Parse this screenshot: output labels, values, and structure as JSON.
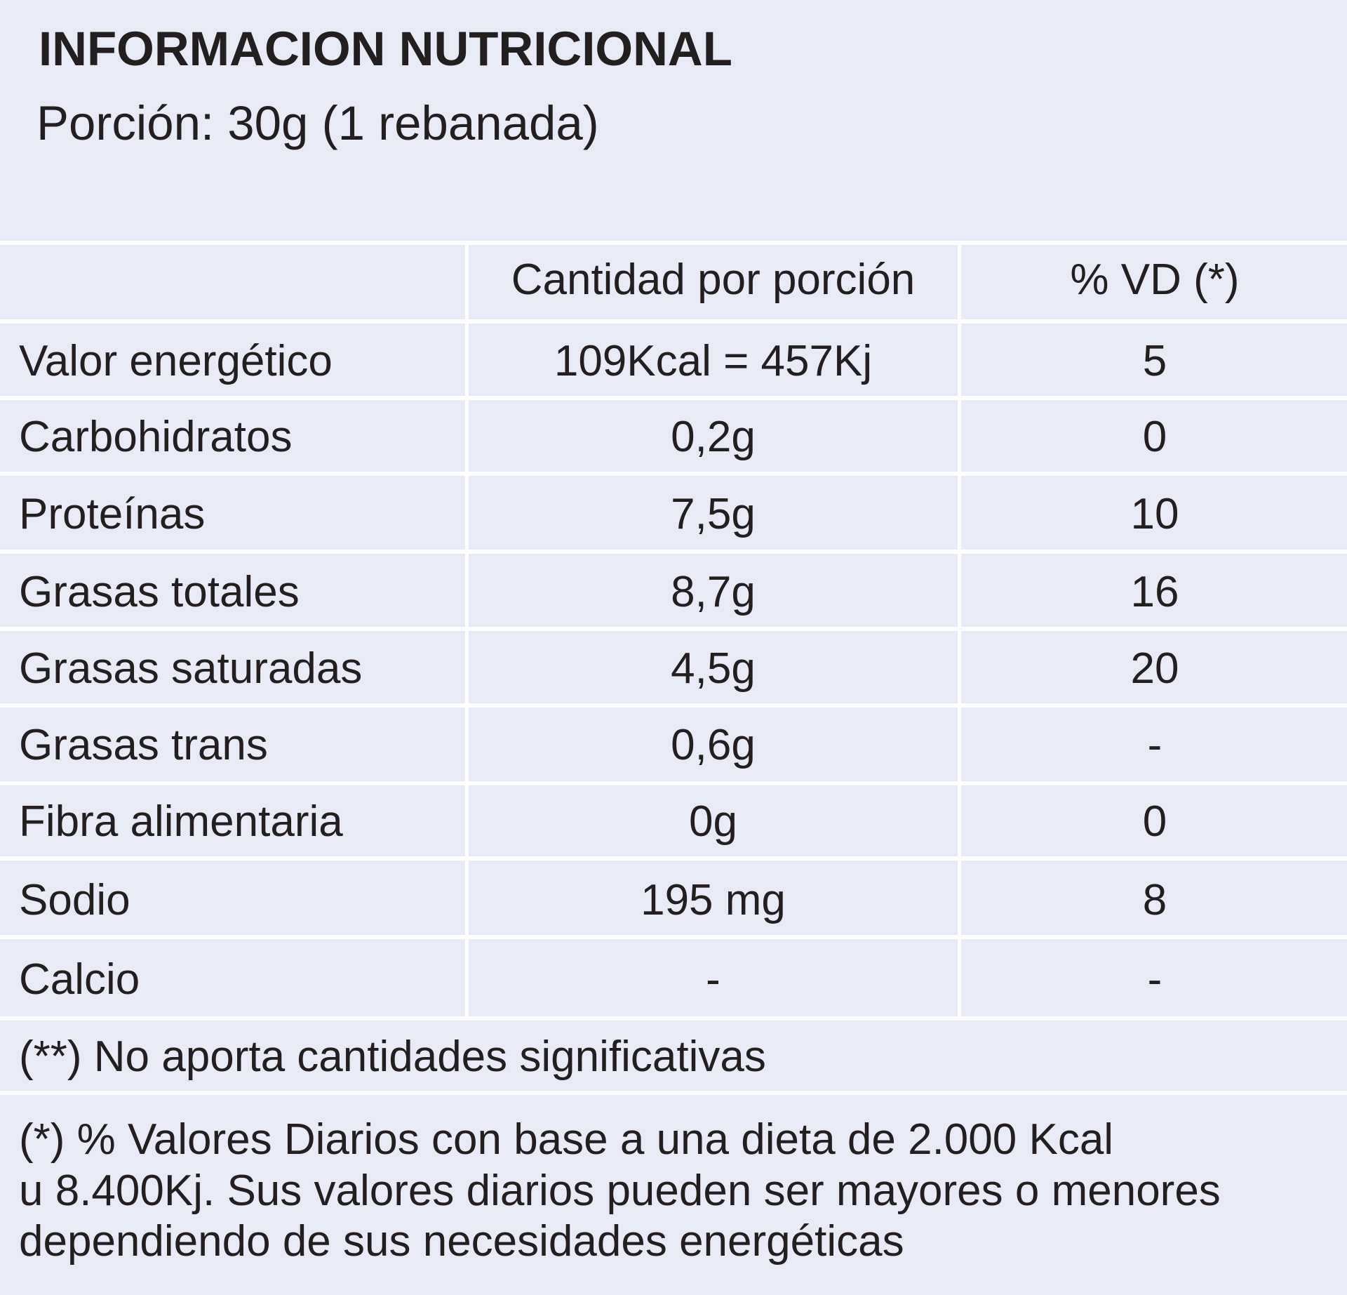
{
  "header": {
    "title": "INFORMACION NUTRICIONAL",
    "serving": "Porción: 30g (1 rebanada)"
  },
  "table": {
    "columns": [
      "",
      "Cantidad por porción",
      "% VD (*)"
    ],
    "rows": [
      {
        "label": "Valor energético",
        "amount": "109Kcal = 457Kj",
        "vd": "5"
      },
      {
        "label": "Carbohidratos",
        "amount": "0,2g",
        "vd": "0"
      },
      {
        "label": "Proteínas",
        "amount": "7,5g",
        "vd": "10"
      },
      {
        "label": "Grasas totales",
        "amount": "8,7g",
        "vd": "16"
      },
      {
        "label": "Grasas saturadas",
        "amount": "4,5g",
        "vd": "20"
      },
      {
        "label": "Grasas trans",
        "amount": "0,6g",
        "vd": "-"
      },
      {
        "label": "Fibra alimentaria",
        "amount": "0g",
        "vd": "0"
      },
      {
        "label": "Sodio",
        "amount": "195 mg",
        "vd": "8"
      },
      {
        "label": "Calcio",
        "amount": "-",
        "vd": "-"
      }
    ]
  },
  "footnotes": {
    "not_significant": "(**) No aporta cantidades significativas",
    "daily_values_line1": "(*) % Valores Diarios con base a una dieta de 2.000 Kcal",
    "daily_values_line2": "u 8.400Kj. Sus valores diarios pueden ser mayores o menores",
    "daily_values_line3": "dependiendo de sus necesidades energéticas"
  },
  "colors": {
    "background": "#e8eaf6",
    "grid_lines": "#ffffff",
    "text": "#231f20"
  }
}
